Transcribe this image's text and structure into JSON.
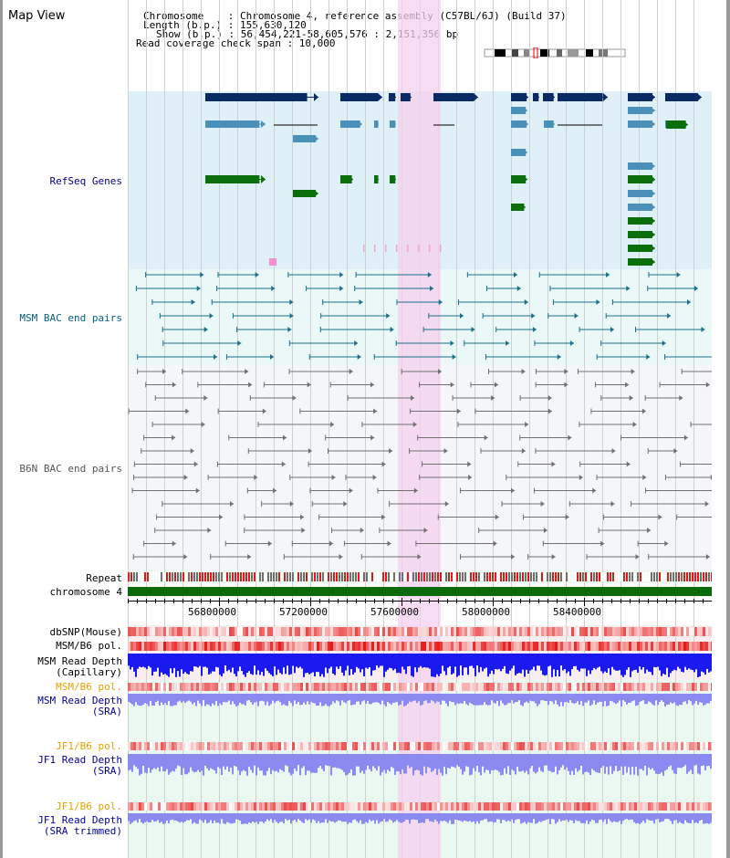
{
  "view": {
    "title": "Map View"
  },
  "info": {
    "chromosome": "Chromosome    : Chromosome 4, reference assembly (C57BL/6J) (Build 37)",
    "length": "Length (b.p.) : 155,630,120",
    "show": "Show (b.p.) : 56,454,221-58,605,576 : 2,151,356 bp",
    "coverage": "Read coverage check span : 10,000"
  },
  "tracks": {
    "refseq": "RefSeq Genes",
    "msm_bac": "MSM BAC end pairs",
    "b6n_bac": "B6N BAC end pairs",
    "repeat": "Repeat",
    "chromosome": "chromosome 4",
    "dbsnp": "dbSNP(Mouse)",
    "msm_b6_pol_1": "MSM/B6 pol.",
    "msm_depth_cap_1": "MSM Read Depth",
    "msm_depth_cap_2": "(Capillary)",
    "msm_b6_pol_2": "MSM/B6 pol.",
    "msm_depth_sra_1": "MSM Read Depth",
    "msm_depth_sra_2": "(SRA)",
    "jf1_pol_1": "JF1/B6 pol.",
    "jf1_depth_1": "JF1 Read Depth",
    "jf1_depth_1b": "(SRA)",
    "jf1_pol_2": "JF1/B6 pol.",
    "jf1_depth_2": "JF1 Read Depth",
    "jf1_depth_2b": "(SRA trimmed)"
  },
  "axis": {
    "ticks": [
      "56800000",
      "57200000",
      "57600000",
      "58000000",
      "58400000"
    ]
  },
  "colors": {
    "refseq_bg": "#dff0f8",
    "bac_bg": "#eaf8f8",
    "b6n_bg": "#f4f6fa",
    "highlight": "#f5d0ef",
    "navy": "#0a2a66",
    "steel": "#4a90b8",
    "green": "#0a6e0a",
    "teal_label": "#006080",
    "orange_label": "#e8a000",
    "blue_label": "#0000a0"
  }
}
